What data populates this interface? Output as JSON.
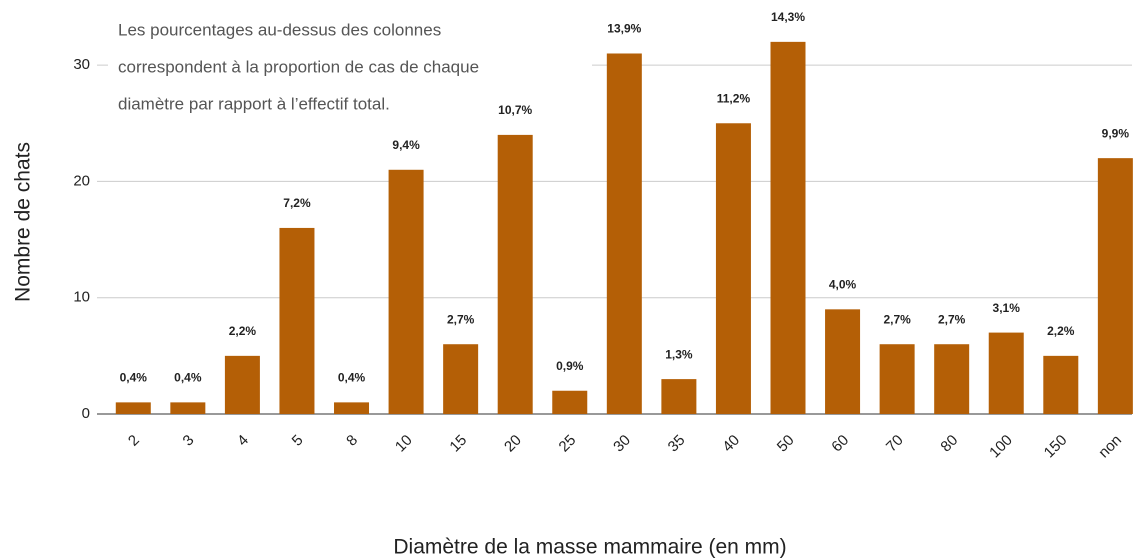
{
  "chart_data": {
    "type": "bar",
    "annotation": [
      "Les pourcentages au-dessus des colonnes",
      "correspondent à la proportion de cas de chaque",
      "diamètre par rapport à l’effectif total."
    ],
    "x_label": "Diamètre de la masse mammaire (en mm)",
    "y_label": "Nombre de chats",
    "categories": [
      "2",
      "3",
      "4",
      "5",
      "8",
      "10",
      "15",
      "20",
      "25",
      "30",
      "35",
      "40",
      "50",
      "60",
      "70",
      "80",
      "100",
      "150",
      "non"
    ],
    "values": [
      1,
      1,
      5,
      16,
      1,
      21,
      6,
      24,
      2,
      31,
      3,
      25,
      32,
      9,
      6,
      6,
      7,
      5,
      22
    ],
    "value_labels": [
      "0,4%",
      "0,4%",
      "2,2%",
      "7,2%",
      "0,4%",
      "9,4%",
      "2,7%",
      "10,7%",
      "0,9%",
      "13,9%",
      "1,3%",
      "11,2%",
      "14,3%",
      "4,0%",
      "2,7%",
      "2,7%",
      "3,1%",
      "2,2%",
      "9,9%"
    ],
    "color": "#b45f06",
    "ylim": [
      0,
      34
    ],
    "yticks": [
      0,
      10,
      20,
      30
    ],
    "grid": true
  }
}
